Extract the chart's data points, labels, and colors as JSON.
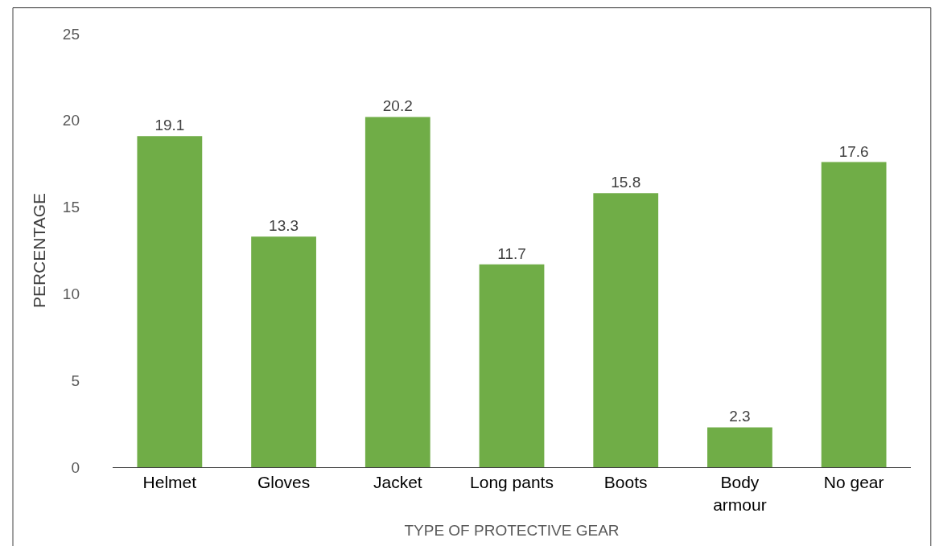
{
  "chart_data": {
    "type": "bar",
    "xlabel": "TYPE OF PROTECTIVE GEAR",
    "ylabel": "PERCENTAGE",
    "categories": [
      "Helmet",
      "Gloves",
      "Jacket",
      "Long pants",
      "Boots",
      "Body armour",
      "No gear"
    ],
    "values": [
      19.1,
      13.3,
      20.2,
      11.7,
      15.8,
      2.3,
      17.6
    ],
    "color": "#70ad47",
    "ylim": [
      0,
      25
    ],
    "yticks": [
      0,
      5,
      10,
      15,
      20,
      25
    ],
    "grid": false,
    "legend": false,
    "data_labels": true
  }
}
